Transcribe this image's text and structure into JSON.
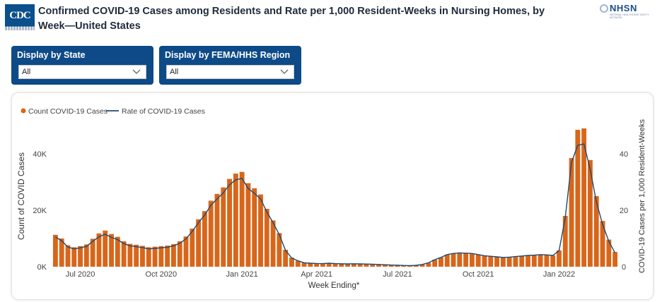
{
  "header": {
    "logo_text": "CDC",
    "title": "Confirmed COVID-19 Cases among Residents and Rate per 1,000 Resident-Weeks in Nursing Homes, by Week—United States",
    "brand": "NHSN",
    "brand_sub": "NATIONAL HEALTHCARE SAFETY NETWORK"
  },
  "filters": [
    {
      "label": "Display by State",
      "value": "All",
      "icon": "chevron-down-icon"
    },
    {
      "label": "Display by FEMA/HHS Region",
      "value": "All",
      "icon": "chevron-down-icon"
    }
  ],
  "colors": {
    "bar": "#d8661a",
    "line": "#1e4a72",
    "filter_bg": "#0d4a87"
  },
  "chart_data": {
    "type": "bar",
    "xlabel": "Week Ending*",
    "ylabel": "Count of COVID Cases",
    "y2label": "COVID-19 Cases per 1,000 Resident-Weeks",
    "legend": [
      {
        "name": "Count COVID-19 Cases",
        "kind": "bar"
      },
      {
        "name": "Rate of COVID-19 Cases",
        "kind": "line"
      }
    ],
    "legend_position": "top-left",
    "grid": false,
    "x_ticks": [
      {
        "label": "Jul 2020",
        "index": 4
      },
      {
        "label": "Oct 2020",
        "index": 17
      },
      {
        "label": "Jan 2021",
        "index": 30
      },
      {
        "label": "Apr 2021",
        "index": 42
      },
      {
        "label": "Jul 2021",
        "index": 55
      },
      {
        "label": "Oct 2021",
        "index": 68
      },
      {
        "label": "Jan 2022",
        "index": 81
      }
    ],
    "y_ticks": [
      {
        "label": "0K",
        "value": 0
      },
      {
        "label": "20K",
        "value": 20000
      },
      {
        "label": "40K",
        "value": 40000
      }
    ],
    "y2_ticks": [
      {
        "label": "0",
        "value": 0
      },
      {
        "label": "20",
        "value": 20
      },
      {
        "label": "40",
        "value": 40
      }
    ],
    "ylim": [
      0,
      52000
    ],
    "y2lim": [
      0,
      52
    ],
    "series": [
      {
        "name": "Count COVID-19 Cases",
        "kind": "bar",
        "values": [
          11300,
          10000,
          7600,
          6900,
          7300,
          7900,
          9900,
          11800,
          12800,
          11600,
          10600,
          9000,
          8100,
          7800,
          7400,
          6900,
          7100,
          7300,
          7500,
          8000,
          9000,
          10700,
          13500,
          16800,
          19700,
          23400,
          25800,
          28100,
          31100,
          33000,
          33600,
          29600,
          27800,
          25600,
          20500,
          16400,
          11900,
          6000,
          3200,
          2100,
          1400,
          1250,
          1150,
          1100,
          1250,
          1100,
          1050,
          1000,
          1050,
          1000,
          950,
          900,
          800,
          700,
          600,
          550,
          450,
          400,
          500,
          800,
          1400,
          2500,
          3300,
          4300,
          4700,
          4900,
          4800,
          4700,
          4300,
          3900,
          3700,
          3500,
          3300,
          3400,
          3600,
          3800,
          4000,
          4100,
          4300,
          4200,
          4000,
          5800,
          18000,
          38500,
          48500,
          49000,
          37800,
          25000,
          16200,
          9600,
          5200
        ],
        "rates": [
          10.5,
          9.2,
          7.0,
          6.3,
          6.7,
          7.2,
          9.0,
          10.6,
          11.5,
          10.4,
          9.6,
          8.2,
          7.4,
          7.1,
          6.8,
          6.3,
          6.5,
          6.7,
          6.9,
          7.4,
          8.3,
          9.9,
          12.5,
          15.6,
          18.3,
          21.8,
          24.0,
          26.2,
          29.0,
          30.8,
          31.3,
          27.7,
          26.0,
          24.0,
          19.4,
          15.6,
          11.4,
          5.8,
          3.1,
          2.1,
          1.4,
          1.25,
          1.15,
          1.1,
          1.25,
          1.1,
          1.05,
          1.0,
          1.05,
          1.0,
          0.95,
          0.9,
          0.8,
          0.7,
          0.6,
          0.55,
          0.45,
          0.4,
          0.5,
          0.8,
          1.4,
          2.5,
          3.3,
          4.3,
          4.7,
          4.9,
          4.8,
          4.7,
          4.3,
          3.9,
          3.7,
          3.5,
          3.3,
          3.4,
          3.6,
          3.8,
          4.0,
          4.1,
          4.3,
          4.2,
          4.0,
          5.7,
          17.5,
          37.0,
          43.0,
          43.5,
          34.5,
          23.0,
          15.0,
          9.0,
          4.9
        ]
      }
    ]
  }
}
